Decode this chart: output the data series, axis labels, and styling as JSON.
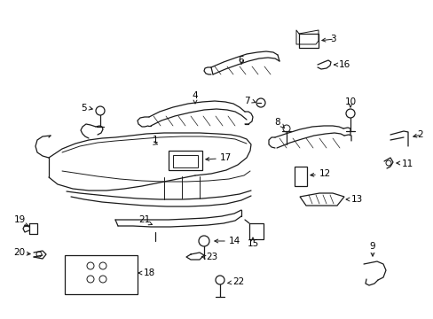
{
  "bg_color": "#ffffff",
  "fig_width": 4.89,
  "fig_height": 3.6,
  "dpi": 100,
  "lc": "#1a1a1a",
  "lw": 0.9,
  "label_fs": 7.5
}
